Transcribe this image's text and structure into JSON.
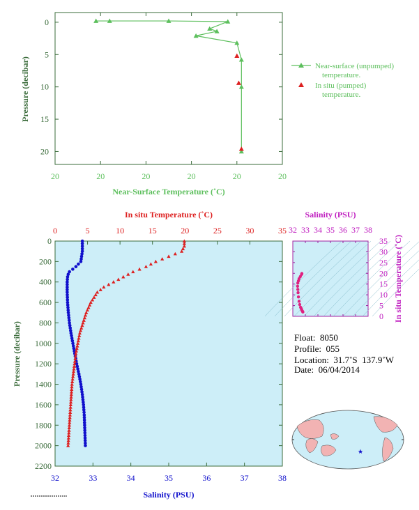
{
  "chart_data": [
    {
      "type": "line",
      "ylabel": "Pressure (decibar)",
      "xlabel": "Near-Surface Temperature (˚C)",
      "xticks": [
        "20",
        "20",
        "20",
        "20",
        "20",
        "20"
      ],
      "xtick_pos": [
        19.75,
        19.8,
        19.85,
        19.9,
        19.95,
        20.0
      ],
      "xlim": [
        19.75,
        20.0
      ],
      "ylim": [
        22,
        -1.5
      ],
      "yticks": [
        0,
        5,
        10,
        15,
        20
      ],
      "legend_position": "right",
      "colors": {
        "near_surface": "#5cbf5c",
        "in_situ": "#dd2020"
      },
      "series": [
        {
          "name": "Near-surface (unpumped) temperature.",
          "x": [
            19.795,
            19.81,
            19.875,
            19.94,
            19.92,
            19.928,
            19.905,
            19.95,
            19.955,
            19.955,
            19.955
          ],
          "y": [
            -0.2,
            -0.2,
            -0.2,
            -0.1,
            1.0,
            1.4,
            2.1,
            3.2,
            5.8,
            10.0,
            20.0
          ]
        },
        {
          "name": "In situ (pumped) temperature.",
          "x": [
            19.95,
            19.952,
            19.955
          ],
          "y": [
            5.2,
            9.4,
            19.6
          ]
        }
      ]
    },
    {
      "type": "line",
      "ylabel": "Pressure (decibar)",
      "xlabel": "Salinity (PSU)",
      "top_xlabel": "In situ Temperature (˚C)",
      "xlim": [
        32,
        38
      ],
      "top_xlim": [
        0,
        35
      ],
      "ylim": [
        2200,
        0
      ],
      "yticks": [
        0,
        200,
        400,
        600,
        800,
        1000,
        1200,
        1400,
        1600,
        1800,
        2000,
        2200
      ],
      "xticks": [
        32,
        33,
        34,
        35,
        36,
        37,
        38
      ],
      "top_xticks": [
        0,
        5,
        10,
        15,
        20,
        25,
        30,
        35
      ],
      "colors": {
        "salinity": "#1010cc",
        "temperature": "#dd2020",
        "background": "#cdeef8"
      },
      "salinity_profile": {
        "pressure": [
          0,
          100,
          200,
          250,
          280,
          300,
          320,
          350,
          400,
          500,
          600,
          700,
          800,
          900,
          1000,
          1100,
          1200,
          1300,
          1400,
          1500,
          1600,
          1700,
          1800,
          1900,
          2000
        ],
        "salinity": [
          32.72,
          32.72,
          32.68,
          32.55,
          32.45,
          32.38,
          32.35,
          32.33,
          32.32,
          32.32,
          32.33,
          32.35,
          32.38,
          32.42,
          32.47,
          32.52,
          32.57,
          32.63,
          32.68,
          32.72,
          32.75,
          32.77,
          32.78,
          32.79,
          32.8
        ]
      },
      "temperature_profile": {
        "pressure": [
          0,
          50,
          100,
          150,
          200,
          250,
          300,
          350,
          400,
          450,
          500,
          600,
          700,
          800,
          900,
          1000,
          1100,
          1200,
          1300,
          1400,
          1500,
          1600,
          1700,
          1800,
          1900,
          2000
        ],
        "temperature": [
          19.9,
          19.9,
          19.5,
          17.5,
          15.5,
          14.0,
          12.0,
          10.5,
          9.0,
          7.5,
          6.5,
          5.5,
          4.8,
          4.3,
          3.8,
          3.5,
          3.2,
          3.0,
          2.8,
          2.6,
          2.5,
          2.4,
          2.3,
          2.2,
          2.1,
          2.0
        ]
      }
    },
    {
      "type": "scatter",
      "title": "Salinity (PSU)",
      "ylabel": "In situ Temperature (˚C)",
      "xlim": [
        32,
        38
      ],
      "ylim": [
        0,
        35
      ],
      "xticks": [
        32,
        33,
        34,
        35,
        36,
        37,
        38
      ],
      "yticks": [
        0,
        5,
        10,
        15,
        20,
        25,
        30,
        35
      ],
      "color": "#e02080",
      "x": [
        32.8,
        32.78,
        32.72,
        32.68,
        32.62,
        32.55,
        32.5,
        32.45,
        32.42,
        32.4,
        32.38,
        32.4,
        32.45,
        32.5,
        32.6,
        32.7,
        32.72
      ],
      "y": [
        2.0,
        2.3,
        2.8,
        3.5,
        4.2,
        5.5,
        7.0,
        9.0,
        11.0,
        12.5,
        14.0,
        15.5,
        16.5,
        17.5,
        18.5,
        19.5,
        19.9
      ]
    }
  ],
  "float_info": {
    "float": "Float:  8050",
    "profile": "Profile:  055",
    "location": "Location:  31.7˚S  137.9˚W",
    "date": "Date:  06/04/2014"
  },
  "map": {
    "marker_symbol": "★",
    "marker_color": "#1010cc"
  }
}
